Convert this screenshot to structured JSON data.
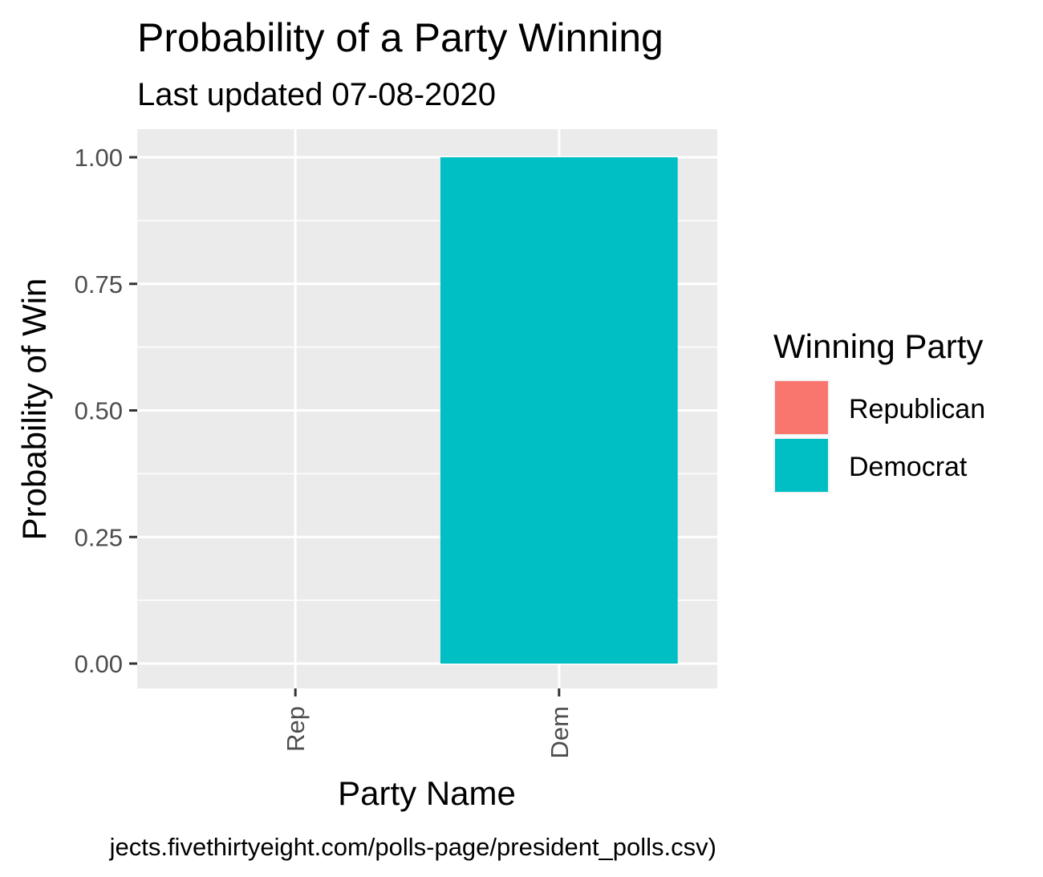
{
  "chart_data": {
    "type": "bar",
    "title": "Probability of a Party Winning",
    "subtitle": "Last updated 07-08-2020",
    "xlabel": "Party Name",
    "ylabel": "Probability of Win",
    "categories": [
      "Rep",
      "Dem"
    ],
    "values": [
      0.0,
      1.0
    ],
    "fill_by": [
      "Republican",
      "Democrat"
    ],
    "ylim": [
      0,
      1
    ],
    "yticks": [
      "0.00",
      "0.25",
      "0.50",
      "0.75",
      "1.00"
    ],
    "legend": {
      "title": "Winning Party",
      "placement": "right",
      "entries": [
        {
          "label": "Republican",
          "color": "#F8766D"
        },
        {
          "label": "Democrat",
          "color": "#00BFC4"
        }
      ]
    },
    "grid": true,
    "caption": "jects.fivethirtyeight.com/polls-page/president_polls.csv)"
  },
  "colors": {
    "panel": "#EBEBEB",
    "grid": "#FFFFFF",
    "tick": "#333333"
  }
}
